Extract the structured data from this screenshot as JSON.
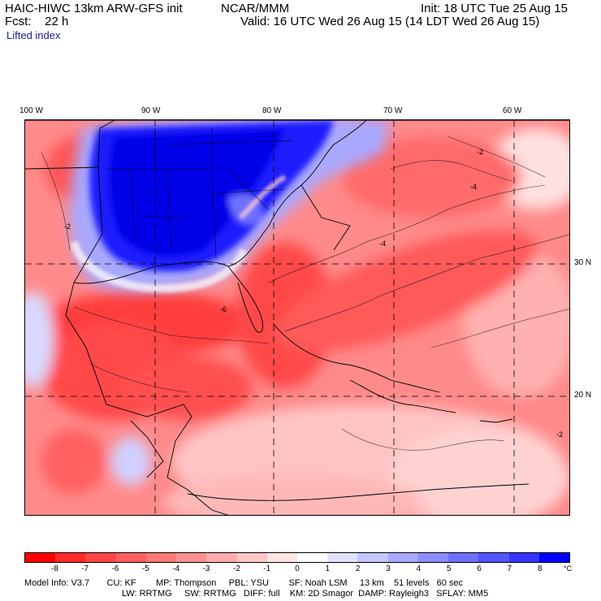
{
  "header": {
    "title": "HAIC-HIWC 13km ARW-GFS init",
    "org": "NCAR/MMM",
    "init": "Init: 18 UTC Tue 25 Aug 15",
    "fcst": "Fcst:    22 h",
    "valid": "Valid: 16 UTC Wed 26 Aug 15 (14 LDT Wed 26 Aug 15)",
    "field": "Lifted index"
  },
  "map": {
    "lon_labels": [
      "100 W",
      "90 W",
      "80 W",
      "70 W",
      "60 W"
    ],
    "lat_labels": [
      "30 N",
      "20 N"
    ],
    "contour_labels": [
      "-2",
      "-4",
      "-6",
      "-2",
      "-4",
      "-2"
    ]
  },
  "legend": {
    "labels": [
      "-8",
      "-7",
      "-6",
      "-5",
      "-4",
      "-3",
      "-2",
      "-1",
      "0",
      "1",
      "2",
      "3",
      "4",
      "5",
      "6",
      "7",
      "8"
    ],
    "unit": "°C",
    "colors": [
      "#ff0000",
      "#ff2a2a",
      "#ff4545",
      "#ff5f5f",
      "#ff7777",
      "#ff9191",
      "#ffabab",
      "#ffc8c8",
      "#ffe4e4",
      "#ffffff",
      "#e3e3ff",
      "#c6c6ff",
      "#a9a9ff",
      "#8c8cff",
      "#6f6fff",
      "#5252ff",
      "#3535ff",
      "#0000ff"
    ]
  },
  "model_info": {
    "line1": "Model Info: V3.7       CU: KF        MP: Thompson     PBL: YSU        SF: Noah LSM     13 km    51 levels   60 sec",
    "line2": "LW: RRTMG     SW: RRTMG   DIFF: full    KM: 2D Smagor  DAMP: Rayleigh3   SFLAY: MM5"
  }
}
